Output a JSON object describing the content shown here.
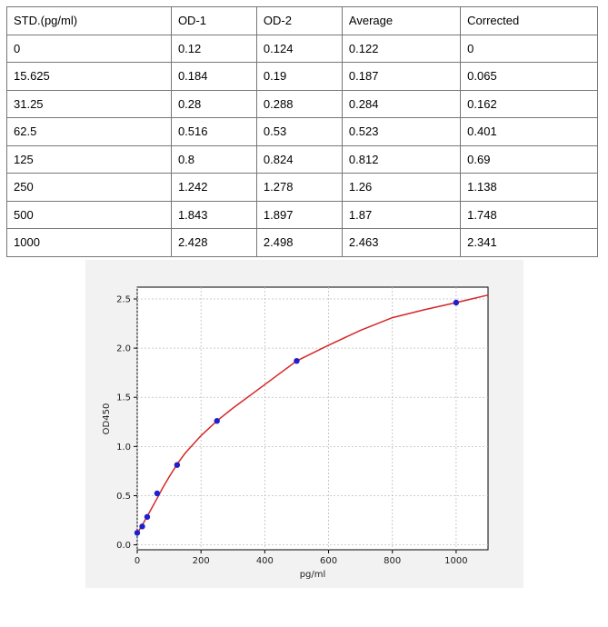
{
  "table": {
    "headers": [
      "STD.(pg/ml)",
      "OD-1",
      "OD-2",
      "Average",
      "Corrected"
    ],
    "rows": [
      [
        "0",
        "0.12",
        "0.124",
        "0.122",
        "0"
      ],
      [
        "15.625",
        "0.184",
        "0.19",
        "0.187",
        "0.065"
      ],
      [
        "31.25",
        "0.28",
        "0.288",
        "0.284",
        "0.162"
      ],
      [
        "62.5",
        "0.516",
        "0.53",
        "0.523",
        "0.401"
      ],
      [
        "125",
        "0.8",
        "0.824",
        "0.812",
        "0.69"
      ],
      [
        "250",
        "1.242",
        "1.278",
        "1.26",
        "1.138"
      ],
      [
        "500",
        "1.843",
        "1.897",
        "1.87",
        "1.748"
      ],
      [
        "1000",
        "2.428",
        "2.498",
        "2.463",
        "2.341"
      ]
    ]
  },
  "chart_data": {
    "type": "scatter",
    "title": "",
    "xlabel": "pg/ml",
    "ylabel": "OD450",
    "xlim": [
      0,
      1100
    ],
    "ylim": [
      -0.05,
      2.62
    ],
    "x_ticks": [
      0,
      200,
      400,
      600,
      800,
      1000
    ],
    "y_ticks": [
      0.0,
      0.5,
      1.0,
      1.5,
      2.0,
      2.5
    ],
    "y_tick_labels": [
      "0.0",
      "0.5",
      "1.0",
      "1.5",
      "2.0",
      "2.5"
    ],
    "grid": true,
    "points": {
      "x": [
        0,
        15.625,
        31.25,
        62.5,
        125,
        250,
        500,
        1000
      ],
      "y": [
        0.122,
        0.187,
        0.284,
        0.523,
        0.812,
        1.26,
        1.87,
        2.463
      ],
      "color": "#1f1fcc"
    },
    "fit_curve": {
      "color": "#d62728",
      "x": [
        0,
        10,
        20,
        40,
        60,
        80,
        100,
        125,
        150,
        200,
        250,
        300,
        400,
        500,
        600,
        700,
        800,
        900,
        1000,
        1100
      ],
      "y": [
        0.12,
        0.17,
        0.225,
        0.34,
        0.46,
        0.58,
        0.69,
        0.82,
        0.93,
        1.11,
        1.26,
        1.39,
        1.63,
        1.87,
        2.03,
        2.18,
        2.31,
        2.39,
        2.463,
        2.54
      ]
    }
  }
}
